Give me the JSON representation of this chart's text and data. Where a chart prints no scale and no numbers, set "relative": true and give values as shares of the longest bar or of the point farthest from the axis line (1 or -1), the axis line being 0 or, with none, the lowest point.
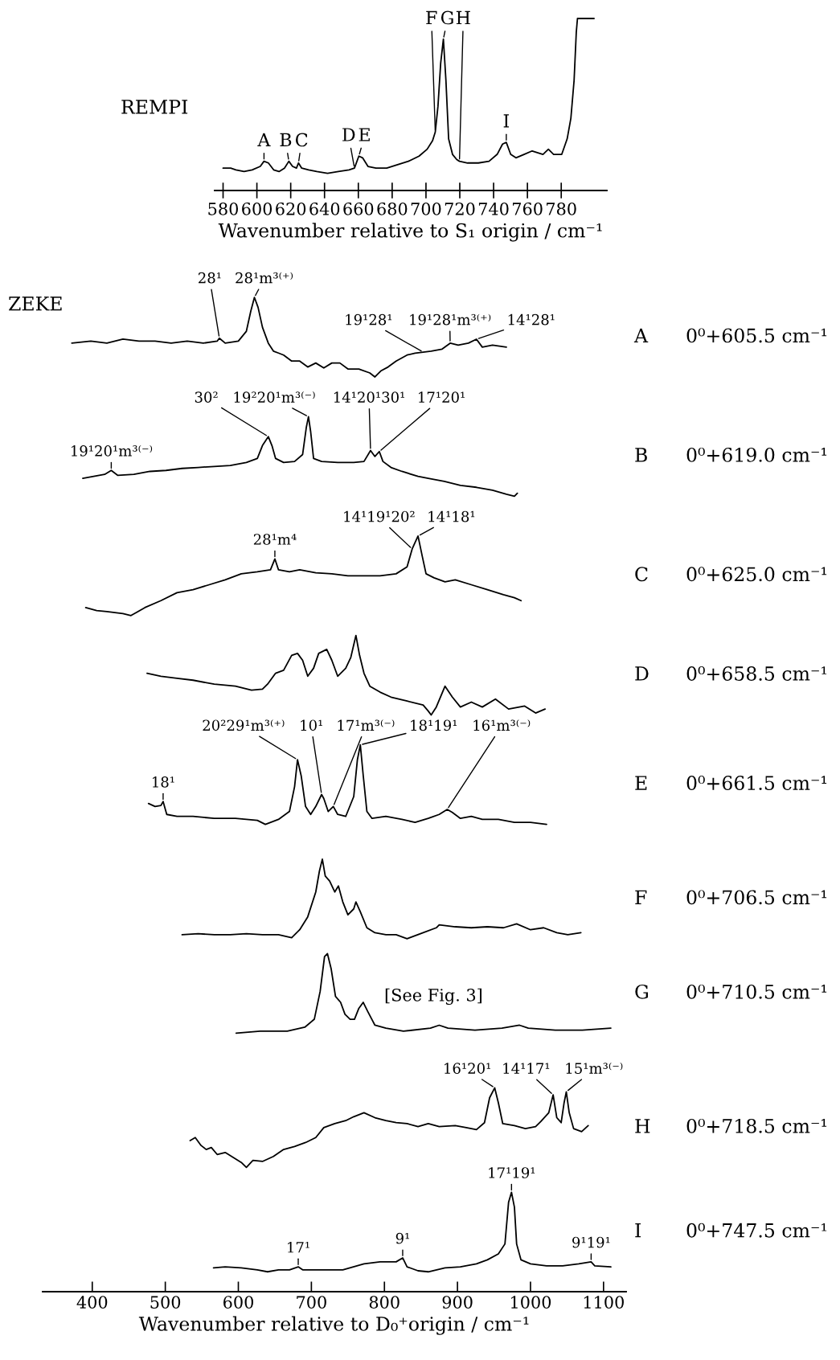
{
  "chart_data": [
    {
      "type": "line",
      "relative": true,
      "title": "REMPI",
      "color": "#000000",
      "xlim": [
        575,
        807
      ],
      "xticks": [
        580,
        600,
        620,
        640,
        660,
        680,
        700,
        720,
        740,
        760,
        780
      ],
      "xlabel": "Wavenumber relative to S₁ origin / cm⁻¹",
      "x": [
        580,
        584.5,
        587.6,
        592.4,
        597.2,
        602,
        604.2,
        606.8,
        609.9,
        613.1,
        616.3,
        618.9,
        621.1,
        623.4,
        624.6,
        626.5,
        630.6,
        635.4,
        641.8,
        648.2,
        654.5,
        657.7,
        660.3,
        662.5,
        665.7,
        670.4,
        676.8,
        683.2,
        689.6,
        695.9,
        700.7,
        703.9,
        705.5,
        707.1,
        708.7,
        710.3,
        711.8,
        713.4,
        715.7,
        718.2,
        719.8,
        724.6,
        731,
        737.3,
        742.1,
        745.3,
        747.5,
        750.1,
        753.2,
        758,
        762.8,
        769.2,
        772.4,
        775.5,
        780.3,
        783.5,
        785.7,
        787.6,
        788.9,
        789.6,
        794.6,
        799.4
      ],
      "values": [
        0.13,
        0.13,
        0.12,
        0.11,
        0.12,
        0.14,
        0.17,
        0.16,
        0.12,
        0.11,
        0.13,
        0.17,
        0.14,
        0.13,
        0.16,
        0.13,
        0.12,
        0.11,
        0.1,
        0.11,
        0.12,
        0.13,
        0.2,
        0.19,
        0.14,
        0.13,
        0.13,
        0.15,
        0.17,
        0.2,
        0.24,
        0.29,
        0.34,
        0.49,
        0.74,
        0.88,
        0.64,
        0.3,
        0.21,
        0.18,
        0.17,
        0.16,
        0.16,
        0.17,
        0.21,
        0.27,
        0.28,
        0.21,
        0.19,
        0.21,
        0.23,
        0.21,
        0.24,
        0.21,
        0.21,
        0.3,
        0.42,
        0.64,
        0.92,
        1,
        1,
        1
      ],
      "annotations": [
        {
          "text": "A",
          "x": 604.2,
          "y": 0.17
        },
        {
          "text": "B",
          "x": 618.9,
          "y": 0.17
        },
        {
          "text": "C",
          "x": 624.6,
          "y": 0.16
        },
        {
          "text": "D",
          "x": 657.7,
          "y": 0.13
        },
        {
          "text": "E",
          "x": 660.3,
          "y": 0.2
        },
        {
          "text": "F",
          "x": 705.5,
          "y": 0.34
        },
        {
          "text": "G",
          "x": 710.3,
          "y": 0.88
        },
        {
          "text": "H",
          "x": 719.8,
          "y": 0.17
        },
        {
          "text": "I",
          "x": 747.5,
          "y": 0.28
        }
      ]
    },
    {
      "type": "line",
      "relative": true,
      "title": "ZEKE",
      "xlim": [
        332,
        1131
      ],
      "xticks": [
        400,
        500,
        600,
        700,
        800,
        900,
        1000,
        1100
      ],
      "xlabel": "Wavenumber relative to D₀⁺origin / cm⁻¹",
      "series": [
        {
          "name": "A",
          "color": "#000000",
          "x": [
            372,
            398,
            420,
            442,
            464,
            486,
            508,
            530,
            552,
            571,
            574,
            582,
            600,
            611,
            617,
            622,
            627,
            633,
            641,
            648,
            655,
            662,
            673,
            684,
            695,
            706,
            717,
            728,
            739,
            750,
            765,
            780,
            787,
            795,
            805,
            816,
            831,
            842,
            853,
            864,
            879,
            890,
            901,
            915,
            926,
            934,
            948,
            967
          ],
          "values": [
            0.954,
            0.956,
            0.954,
            0.958,
            0.956,
            0.956,
            0.954,
            0.956,
            0.954,
            0.956,
            0.959,
            0.954,
            0.956,
            0.966,
            0.986,
            1,
            0.99,
            0.97,
            0.954,
            0.946,
            0.944,
            0.942,
            0.936,
            0.936,
            0.93,
            0.934,
            0.929,
            0.934,
            0.934,
            0.928,
            0.928,
            0.924,
            0.92,
            0.926,
            0.93,
            0.936,
            0.942,
            0.944,
            0.945,
            0.946,
            0.948,
            0.954,
            0.952,
            0.954,
            0.958,
            0.95,
            0.952,
            0.95
          ]
        },
        {
          "name": "B",
          "color": "#000000",
          "x": [
            387,
            402,
            417,
            426,
            435,
            457,
            479,
            501,
            523,
            545,
            567,
            589,
            611,
            626,
            633,
            641,
            646,
            651,
            662,
            677,
            688,
            693,
            696,
            699,
            703,
            714,
            736,
            758,
            772,
            781,
            787,
            793,
            798,
            809,
            824,
            846,
            860,
            882,
            904,
            926,
            948,
            967,
            978,
            982
          ],
          "values": [
            0.818,
            0.82,
            0.822,
            0.826,
            0.821,
            0.822,
            0.825,
            0.826,
            0.828,
            0.829,
            0.83,
            0.831,
            0.834,
            0.838,
            0.851,
            0.86,
            0.851,
            0.838,
            0.834,
            0.835,
            0.842,
            0.869,
            0.88,
            0.865,
            0.838,
            0.835,
            0.834,
            0.834,
            0.835,
            0.846,
            0.84,
            0.845,
            0.835,
            0.829,
            0.825,
            0.82,
            0.818,
            0.815,
            0.811,
            0.809,
            0.806,
            0.802,
            0.8,
            0.803
          ]
        },
        {
          "name": "C",
          "color": "#000000",
          "x": [
            391,
            406,
            420,
            442,
            453,
            472,
            494,
            516,
            538,
            560,
            582,
            604,
            626,
            644,
            650,
            655,
            670,
            684,
            706,
            728,
            750,
            772,
            794,
            816,
            831,
            838,
            846,
            852,
            857,
            868,
            883,
            897,
            919,
            941,
            963,
            978,
            987
          ],
          "values": [
            0.688,
            0.685,
            0.684,
            0.682,
            0.68,
            0.688,
            0.695,
            0.703,
            0.706,
            0.711,
            0.716,
            0.722,
            0.724,
            0.726,
            0.737,
            0.726,
            0.724,
            0.726,
            0.723,
            0.722,
            0.72,
            0.72,
            0.72,
            0.722,
            0.729,
            0.747,
            0.76,
            0.739,
            0.722,
            0.718,
            0.714,
            0.716,
            0.711,
            0.706,
            0.701,
            0.698,
            0.695
          ]
        },
        {
          "name": "D",
          "color": "#000000",
          "x": [
            475,
            494,
            516,
            538,
            567,
            596,
            618,
            633,
            640,
            651,
            662,
            673,
            681,
            688,
            695,
            703,
            710,
            721,
            728,
            736,
            747,
            754,
            761,
            766,
            772,
            780,
            794,
            809,
            831,
            853,
            860,
            864,
            871,
            883,
            893,
            904,
            919,
            934,
            952,
            970,
            992,
            1007,
            1020
          ],
          "values": [
            0.622,
            0.619,
            0.617,
            0.615,
            0.611,
            0.609,
            0.605,
            0.606,
            0.611,
            0.622,
            0.625,
            0.64,
            0.642,
            0.635,
            0.619,
            0.627,
            0.642,
            0.646,
            0.635,
            0.619,
            0.627,
            0.638,
            0.66,
            0.64,
            0.622,
            0.609,
            0.603,
            0.598,
            0.594,
            0.59,
            0.584,
            0.58,
            0.588,
            0.609,
            0.598,
            0.588,
            0.593,
            0.588,
            0.596,
            0.586,
            0.589,
            0.582,
            0.586
          ]
        },
        {
          "name": "E",
          "color": "#000000",
          "x": [
            477,
            486,
            494,
            497,
            502,
            516,
            538,
            567,
            596,
            626,
            637,
            655,
            670,
            677,
            681,
            686,
            692,
            699,
            706,
            714,
            717,
            723,
            730,
            736,
            747,
            758,
            763,
            767,
            771,
            776,
            783,
            802,
            824,
            842,
            860,
            875,
            886,
            893,
            904,
            919,
            934,
            956,
            978,
            1000,
            1022
          ],
          "values": [
            0.491,
            0.488,
            0.489,
            0.493,
            0.48,
            0.478,
            0.478,
            0.476,
            0.476,
            0.474,
            0.47,
            0.475,
            0.483,
            0.508,
            0.535,
            0.519,
            0.488,
            0.48,
            0.488,
            0.5,
            0.496,
            0.483,
            0.488,
            0.48,
            0.478,
            0.498,
            0.535,
            0.55,
            0.519,
            0.483,
            0.476,
            0.478,
            0.475,
            0.472,
            0.476,
            0.48,
            0.485,
            0.482,
            0.476,
            0.478,
            0.475,
            0.475,
            0.472,
            0.472,
            0.47
          ]
        },
        {
          "name": "F",
          "color": "#000000",
          "x": [
            523,
            545,
            567,
            589,
            611,
            633,
            655,
            673,
            684,
            695,
            706,
            711,
            715,
            719,
            725,
            732,
            737,
            743,
            750,
            758,
            761,
            767,
            776,
            787,
            802,
            816,
            831,
            853,
            871,
            875,
            897,
            919,
            941,
            963,
            981,
            1000,
            1018,
            1036,
            1051,
            1069
          ],
          "values": [
            0.359,
            0.36,
            0.359,
            0.359,
            0.36,
            0.359,
            0.359,
            0.356,
            0.364,
            0.377,
            0.402,
            0.423,
            0.435,
            0.418,
            0.413,
            0.402,
            0.408,
            0.392,
            0.379,
            0.385,
            0.392,
            0.382,
            0.366,
            0.361,
            0.359,
            0.359,
            0.355,
            0.361,
            0.366,
            0.369,
            0.367,
            0.366,
            0.367,
            0.366,
            0.37,
            0.364,
            0.366,
            0.361,
            0.359,
            0.361
          ]
        },
        {
          "name": "G",
          "color": "#000000",
          "x": [
            597,
            630,
            667,
            691,
            704,
            712,
            718,
            722,
            727,
            733,
            740,
            746,
            753,
            759,
            765,
            771,
            777,
            787,
            802,
            826,
            863,
            875,
            887,
            924,
            961,
            985,
            997,
            1034,
            1071,
            1110
          ],
          "values": [
            0.26,
            0.262,
            0.262,
            0.266,
            0.274,
            0.302,
            0.337,
            0.34,
            0.325,
            0.297,
            0.291,
            0.279,
            0.274,
            0.274,
            0.285,
            0.291,
            0.282,
            0.268,
            0.265,
            0.262,
            0.265,
            0.268,
            0.265,
            0.263,
            0.265,
            0.268,
            0.265,
            0.263,
            0.263,
            0.265
          ]
        },
        {
          "name": "H",
          "color": "#000000",
          "x": [
            534,
            541,
            549,
            556,
            563,
            571,
            582,
            593,
            604,
            611,
            620,
            633,
            648,
            662,
            677,
            692,
            706,
            717,
            732,
            747,
            758,
            772,
            787,
            802,
            816,
            831,
            846,
            860,
            875,
            897,
            912,
            926,
            937,
            944,
            951,
            956,
            962,
            978,
            993,
            1007,
            1014,
            1025,
            1031,
            1036,
            1042,
            1046,
            1049,
            1053,
            1059,
            1070,
            1079
          ],
          "values": [
            0.152,
            0.155,
            0.147,
            0.143,
            0.145,
            0.138,
            0.14,
            0.135,
            0.13,
            0.125,
            0.132,
            0.131,
            0.136,
            0.143,
            0.146,
            0.15,
            0.155,
            0.165,
            0.169,
            0.172,
            0.176,
            0.18,
            0.175,
            0.172,
            0.17,
            0.169,
            0.166,
            0.169,
            0.166,
            0.167,
            0.165,
            0.163,
            0.17,
            0.195,
            0.205,
            0.19,
            0.169,
            0.167,
            0.164,
            0.166,
            0.171,
            0.18,
            0.198,
            0.175,
            0.17,
            0.19,
            0.201,
            0.18,
            0.164,
            0.161,
            0.167
          ]
        },
        {
          "name": "I",
          "color": "#000000",
          "x": [
            566,
            582,
            604,
            626,
            640,
            655,
            670,
            682,
            688,
            714,
            743,
            772,
            794,
            816,
            825,
            831,
            846,
            860,
            883,
            904,
            926,
            941,
            956,
            965,
            970,
            974,
            978,
            981,
            987,
            1000,
            1022,
            1044,
            1066,
            1083,
            1088,
            1110
          ],
          "values": [
            0.024,
            0.025,
            0.024,
            0.022,
            0.02,
            0.022,
            0.022,
            0.025,
            0.022,
            0.022,
            0.022,
            0.028,
            0.03,
            0.03,
            0.034,
            0.025,
            0.021,
            0.02,
            0.024,
            0.025,
            0.028,
            0.032,
            0.038,
            0.048,
            0.09,
            0.1,
            0.085,
            0.048,
            0.032,
            0.028,
            0.026,
            0.026,
            0.028,
            0.03,
            0.026,
            0.025
          ]
        }
      ],
      "annotations": [
        "0⁰+605.5 cm⁻¹",
        "0⁰+619.0 cm⁻¹",
        "0⁰+625.0 cm⁻¹",
        "0⁰+658.5 cm⁻¹",
        "0⁰+661.5 cm⁻¹",
        "0⁰+706.5 cm⁻¹",
        "0⁰+710.5 cm⁻¹",
        "0⁰+718.5 cm⁻¹",
        "0⁰+747.5 cm⁻¹",
        "[See Fig. 3]",
        {
          "text": "28¹",
          "x": 574,
          "y": 0.959
        },
        {
          "text": "28¹m³⁽⁺⁾",
          "x": 622,
          "y": 1
        },
        {
          "text": "19¹28¹",
          "x": 853,
          "y": 0.945
        },
        {
          "text": "19¹28¹m³⁽⁺⁾",
          "x": 890,
          "y": 0.954
        },
        {
          "text": "14¹28¹",
          "x": 926,
          "y": 0.958
        },
        {
          "text": "19¹20¹m³⁽⁻⁾",
          "x": 426,
          "y": 0.826
        },
        {
          "text": "30²",
          "x": 641,
          "y": 0.86
        },
        {
          "text": "19²20¹m³⁽⁻⁾",
          "x": 696,
          "y": 0.88
        },
        {
          "text": "14¹20¹30¹",
          "x": 781,
          "y": 0.846
        },
        {
          "text": "17¹20¹",
          "x": 793,
          "y": 0.845
        },
        {
          "text": "28¹m⁴",
          "x": 650,
          "y": 0.737
        },
        {
          "text": "14¹19¹20²",
          "x": 838,
          "y": 0.747
        },
        {
          "text": "14¹18¹",
          "x": 846,
          "y": 0.76
        },
        {
          "text": "18¹",
          "x": 497,
          "y": 0.493
        },
        {
          "text": "20²29¹m³⁽⁺⁾",
          "x": 681,
          "y": 0.535
        },
        {
          "text": "10¹",
          "x": 714,
          "y": 0.5
        },
        {
          "text": "17¹m³⁽⁻⁾",
          "x": 730,
          "y": 0.488
        },
        {
          "text": "18¹19¹",
          "x": 767,
          "y": 0.55
        },
        {
          "text": "16¹m³⁽⁻⁾",
          "x": 886,
          "y": 0.485
        },
        {
          "text": "16¹20¹",
          "x": 951,
          "y": 0.205
        },
        {
          "text": "14¹17¹",
          "x": 1031,
          "y": 0.198
        },
        {
          "text": "15¹m³⁽⁻⁾",
          "x": 1049,
          "y": 0.201
        },
        {
          "text": "17¹",
          "x": 682,
          "y": 0.025
        },
        {
          "text": "9¹",
          "x": 825,
          "y": 0.034
        },
        {
          "text": "17¹19¹",
          "x": 974,
          "y": 0.1
        },
        {
          "text": "9¹19¹",
          "x": 1083,
          "y": 0.03
        }
      ]
    }
  ]
}
